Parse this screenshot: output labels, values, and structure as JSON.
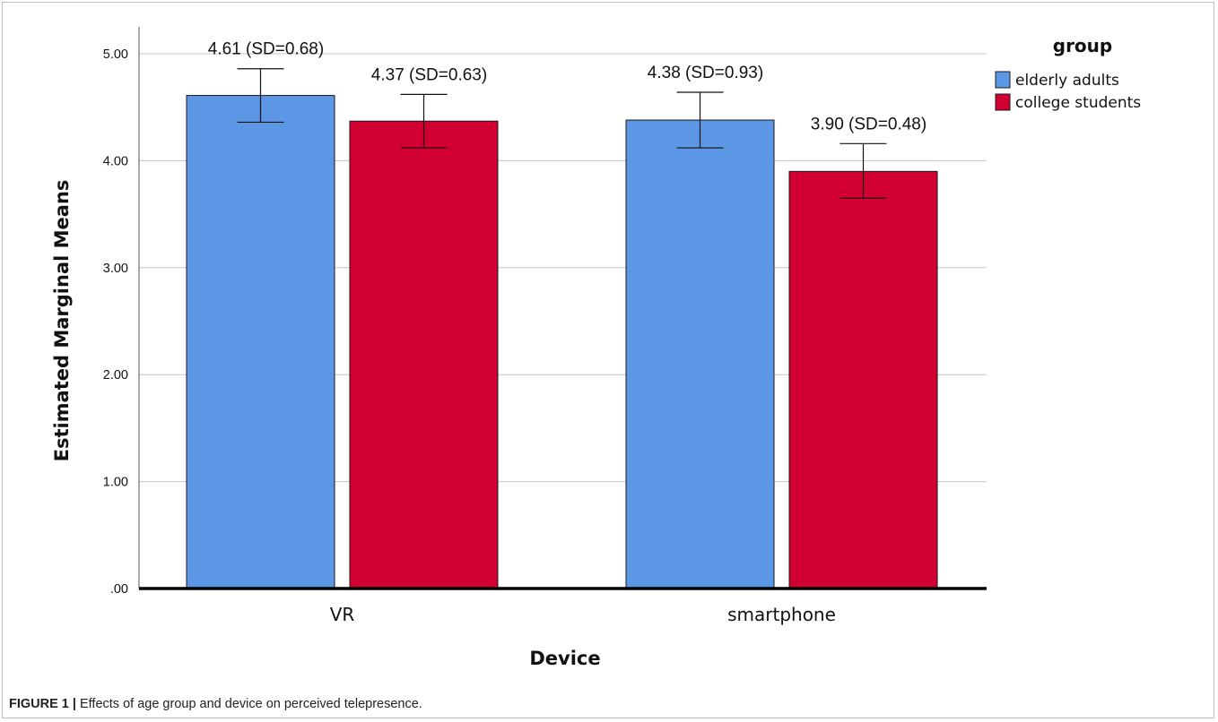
{
  "chart_data": {
    "type": "bar",
    "xlabel": "Device",
    "ylabel": "Estimated Marginal Means",
    "ylim": [
      0,
      5
    ],
    "yticks": [
      ".00",
      "1.00",
      "2.00",
      "3.00",
      "4.00",
      "5.00"
    ],
    "grid": true,
    "legend_title": "group",
    "legend_position": "top-right",
    "categories": [
      "VR",
      "smartphone"
    ],
    "series": [
      {
        "name": "elderly adults",
        "color": "#5b97e5",
        "values": [
          4.61,
          4.38
        ],
        "error_low": [
          4.36,
          4.12
        ],
        "error_high": [
          4.86,
          4.64
        ],
        "labels": [
          "4.61 (SD=0.68)",
          "4.38 (SD=0.93)"
        ]
      },
      {
        "name": "college students",
        "color": "#d20032",
        "values": [
          4.37,
          3.9
        ],
        "error_low": [
          4.12,
          3.65
        ],
        "error_high": [
          4.62,
          4.16
        ],
        "labels": [
          "4.37 (SD=0.63)",
          "3.90 (SD=0.48)"
        ]
      }
    ]
  },
  "caption": {
    "label": "FIGURE 1 |",
    "text": " Effects of age group and device on perceived telepresence."
  }
}
